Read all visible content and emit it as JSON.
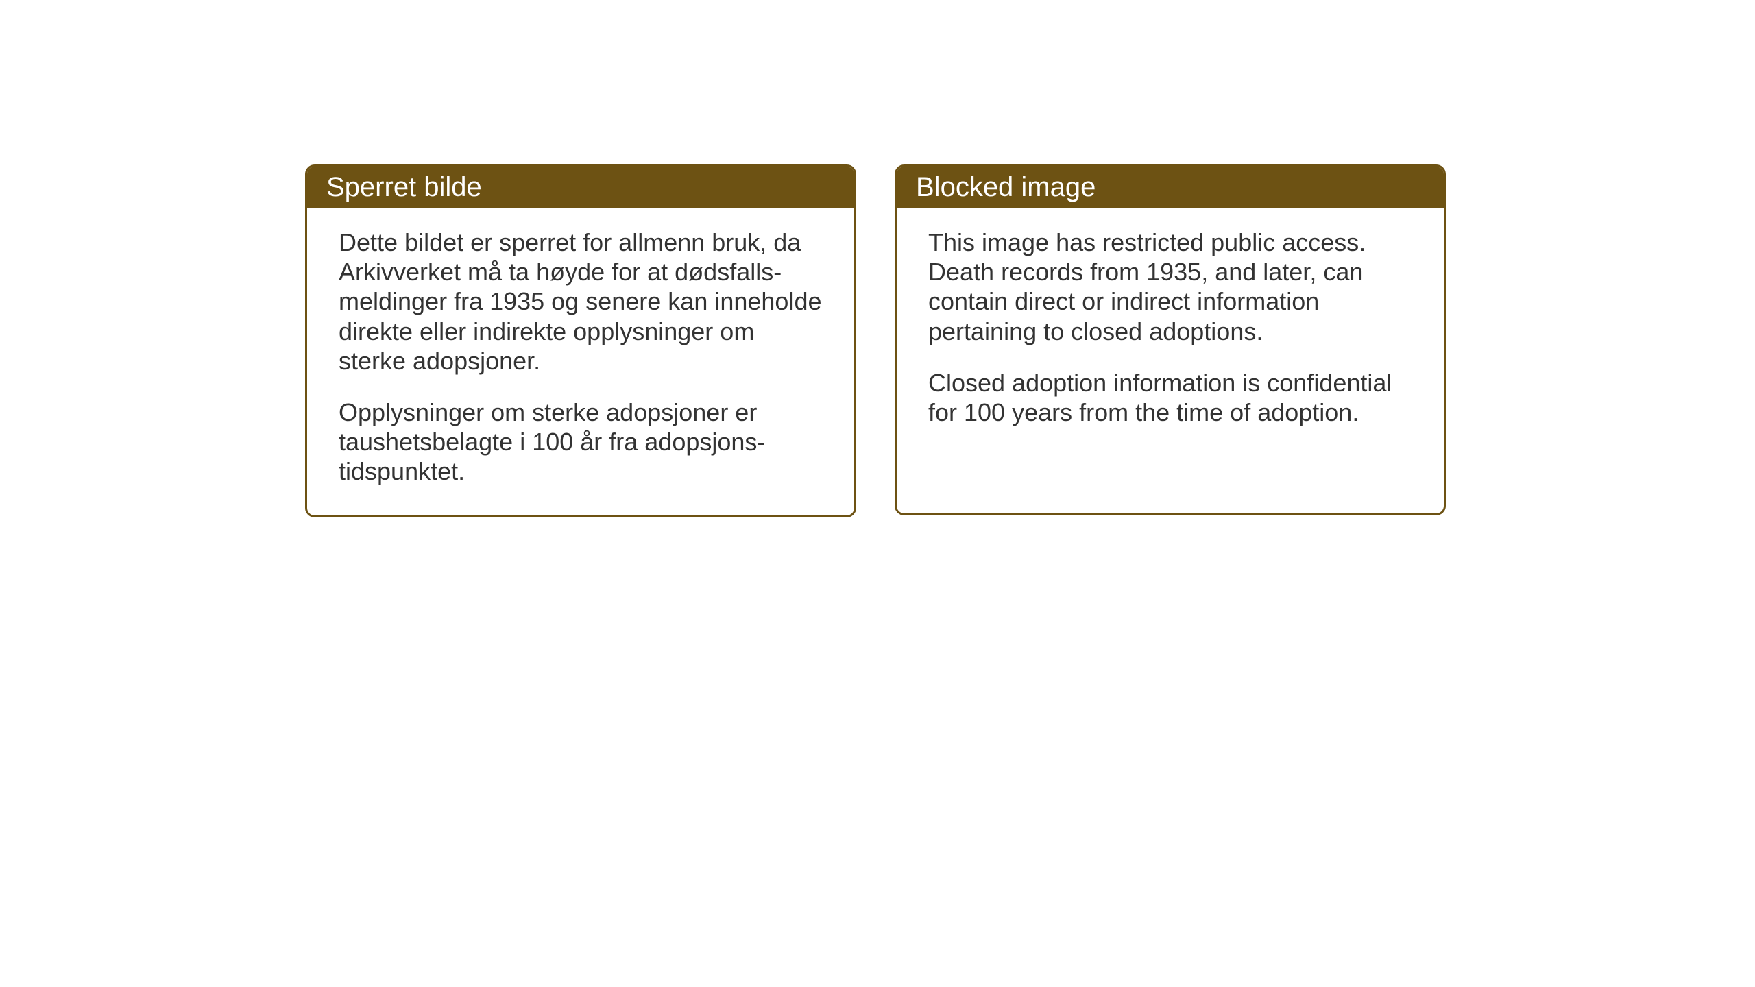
{
  "cards": {
    "norwegian": {
      "title": "Sperret bilde",
      "paragraph1": "Dette bildet er sperret for allmenn bruk, da Arkivverket må ta høyde for at dødsfalls-meldinger fra 1935 og senere kan inneholde direkte eller indirekte opplysninger om sterke adopsjoner.",
      "paragraph2": "Opplysninger om sterke adopsjoner er taushetsbelagte i 100 år fra adopsjons-tidspunktet."
    },
    "english": {
      "title": "Blocked image",
      "paragraph1": "This image has restricted public access. Death records from 1935, and later, can contain direct or indirect information pertaining to closed adoptions.",
      "paragraph2": "Closed adoption information is confidential for 100 years from the time of adoption."
    }
  },
  "styling": {
    "header_bg_color": "#6d5213",
    "header_text_color": "#ffffff",
    "border_color": "#6d5213",
    "body_bg_color": "#ffffff",
    "body_text_color": "#333333",
    "header_font_size": 40,
    "body_font_size": 36,
    "border_radius": 14,
    "border_width": 3
  }
}
